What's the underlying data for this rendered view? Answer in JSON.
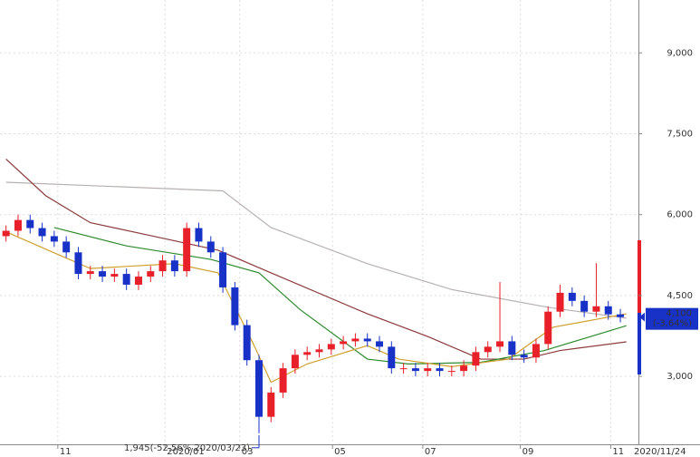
{
  "chart_data": {
    "type": "candlestick",
    "xlim": [
      -0.5,
      52.5
    ],
    "ylim": [
      1740,
      9980
    ],
    "yticks": [
      {
        "value": 3000,
        "label": "3,000"
      },
      {
        "value": 4500,
        "label": "4,500"
      },
      {
        "value": 6000,
        "label": "6,000"
      },
      {
        "value": 7500,
        "label": "7,500"
      },
      {
        "value": 9000,
        "label": "9,000"
      }
    ],
    "xticks": [
      {
        "value": 4.3,
        "label": "11"
      },
      {
        "value": 13.2,
        "label": "2020/01"
      },
      {
        "value": 19.4,
        "label": "03"
      },
      {
        "value": 27.1,
        "label": "05"
      },
      {
        "value": 34.6,
        "label": "07"
      },
      {
        "value": 42.7,
        "label": "09"
      },
      {
        "value": 50.2,
        "label": "11"
      }
    ],
    "grid": true,
    "up_color": "#e8202a",
    "down_color": "#1832c8",
    "x": [
      0,
      1,
      2,
      3,
      4,
      5,
      6,
      7,
      8,
      9,
      10,
      11,
      12,
      13,
      14,
      15,
      16,
      17,
      18,
      19,
      20,
      21,
      22,
      23,
      24,
      25,
      26,
      27,
      28,
      29,
      30,
      31,
      32,
      33,
      34,
      35,
      36,
      37,
      38,
      39,
      40,
      41,
      42,
      43,
      44,
      45,
      46,
      47,
      48,
      49,
      50,
      51
    ],
    "open": [
      5600,
      5700,
      5900,
      5750,
      5600,
      5500,
      5300,
      4900,
      4950,
      4850,
      4900,
      4700,
      4850,
      4950,
      5150,
      4950,
      5750,
      5500,
      5300,
      4650,
      3950,
      3300,
      2250,
      2700,
      3150,
      3400,
      3450,
      3500,
      3600,
      3650,
      3700,
      3650,
      3550,
      3150,
      3150,
      3100,
      3150,
      3100,
      3100,
      3200,
      3450,
      3550,
      3650,
      3400,
      3350,
      3600,
      4200,
      4550,
      4400,
      4200,
      4300,
      4150
    ],
    "high": [
      5800,
      6000,
      6000,
      5850,
      5700,
      5600,
      5400,
      5050,
      5050,
      5000,
      5000,
      4950,
      5050,
      5250,
      5250,
      5850,
      5850,
      5600,
      5400,
      4750,
      4050,
      3400,
      2800,
      3250,
      3500,
      3550,
      3600,
      3700,
      3750,
      3800,
      3800,
      3750,
      3650,
      3250,
      3250,
      3250,
      3250,
      3200,
      3300,
      3550,
      3650,
      4750,
      3750,
      3500,
      3700,
      4300,
      4700,
      4650,
      4500,
      5100,
      4400,
      4250
    ],
    "low": [
      5500,
      5600,
      5650,
      5500,
      5400,
      5200,
      4800,
      4800,
      4750,
      4750,
      4600,
      4600,
      4750,
      4850,
      4850,
      4850,
      5400,
      5200,
      4550,
      3850,
      3200,
      1945,
      2150,
      2600,
      3050,
      3300,
      3350,
      3400,
      3500,
      3550,
      3550,
      3450,
      3050,
      3050,
      3000,
      3000,
      3000,
      3000,
      3000,
      3100,
      3350,
      3450,
      3300,
      3250,
      3250,
      3500,
      4100,
      4300,
      4100,
      4100,
      4050,
      4000
    ],
    "close": [
      5700,
      5900,
      5750,
      5600,
      5500,
      5300,
      4900,
      4950,
      4850,
      4900,
      4700,
      4850,
      4950,
      5150,
      4950,
      5750,
      5500,
      5300,
      4650,
      3950,
      3300,
      2250,
      2700,
      3150,
      3400,
      3450,
      3500,
      3600,
      3650,
      3700,
      3650,
      3550,
      3150,
      3150,
      3100,
      3150,
      3100,
      3100,
      3200,
      3450,
      3550,
      3650,
      3400,
      3350,
      3600,
      4200,
      4550,
      4400,
      4200,
      4300,
      4150,
      4100
    ],
    "ma_lines": [
      {
        "color": "#b8b0b0",
        "x": [
          0,
          18,
          22,
          30,
          37,
          45,
          51.5
        ],
        "values": [
          6600,
          6440,
          5760,
          5090,
          4610,
          4280,
          4080
        ]
      },
      {
        "color": "#8b3a3a",
        "x": [
          0,
          3.3,
          7,
          11.6,
          17.6,
          22,
          30,
          35,
          39.4,
          43,
          46,
          51.5
        ],
        "values": [
          7030,
          6350,
          5850,
          5630,
          5340,
          4920,
          4160,
          3740,
          3320,
          3320,
          3480,
          3640
        ]
      },
      {
        "color": "#2e8b2e",
        "x": [
          4,
          10,
          17,
          21,
          24.4,
          30,
          33.4,
          39.4,
          44.7,
          51.5
        ],
        "values": [
          5760,
          5420,
          5170,
          4920,
          4240,
          3320,
          3230,
          3260,
          3480,
          3940
        ]
      },
      {
        "color": "#d0a030",
        "x": [
          0,
          7,
          14,
          17.6,
          20.6,
          22,
          25,
          30,
          32.6,
          37,
          41.7,
          45.4,
          51.5
        ],
        "values": [
          5680,
          5000,
          5090,
          4920,
          3570,
          2890,
          3230,
          3570,
          3320,
          3180,
          3320,
          3910,
          4160
        ]
      }
    ],
    "annotation": "1,945(-52.56% 2020/03/23)",
    "last_price": {
      "value": 4100,
      "label": "4,100"
    },
    "last_change": "(-3.64%)",
    "current_date": "2020/11/24"
  }
}
